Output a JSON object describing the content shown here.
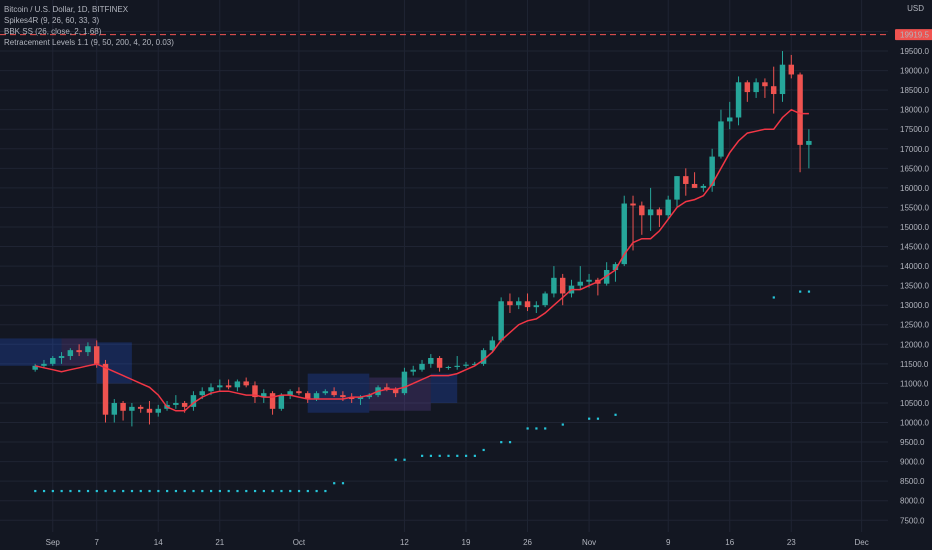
{
  "header": {
    "title": "Bitcoin / U.S. Dollar, 1D, BITFINEX",
    "indicators": [
      "Spikes4R (9, 26, 60, 33, 3)",
      "BBK SS (26, close, 2, 1.68)",
      "Retracement Levels 1.1 (9, 50, 200, 4, 20, 0.03)"
    ],
    "currency": "USD"
  },
  "colors": {
    "background": "#131722",
    "grid": "#1f2433",
    "up": "#26a69a",
    "down": "#ef5350",
    "line": "#f23645",
    "dots": "#26c6da",
    "resistance": "#ef5350",
    "price_tag_bg": "#ef5350",
    "axis_text": "#b2b5be"
  },
  "chart_data": {
    "type": "candlestick",
    "price_tag": "19919.5",
    "resistance_level": 19919.5,
    "x_labels": [
      "Sep",
      "7",
      "14",
      "21",
      "Oct",
      "12",
      "19",
      "26",
      "Nov",
      "9",
      "16",
      "23",
      "Dec"
    ],
    "x_label_positions": [
      2,
      7,
      14,
      21,
      30,
      42,
      49,
      56,
      63,
      72,
      79,
      86,
      94
    ],
    "y_ticks": [
      7500,
      8000,
      8500,
      9000,
      9500,
      10000,
      10500,
      11000,
      11500,
      12000,
      12500,
      13000,
      13500,
      14000,
      14500,
      15000,
      15500,
      16000,
      16500,
      17000,
      17500,
      18000,
      18500,
      19000,
      19500,
      20000
    ],
    "y_tick_labels": [
      "7500.0",
      "8000.0",
      "8500.0",
      "9000.0",
      "9500.0",
      "10000.0",
      "10500.0",
      "11000.0",
      "11500.0",
      "12000.0",
      "12500.0",
      "13000.0",
      "13500.0",
      "14000.0",
      "14500.0",
      "15000.0",
      "15500.0",
      "16000.0",
      "16500.0",
      "17000.0",
      "17500.0",
      "18000.0",
      "18500.0",
      "19000.0",
      "19500.0",
      "20000.0"
    ],
    "ylim": [
      7200,
      20600
    ],
    "x_range": [
      -4,
      97
    ],
    "candles": [
      [
        11350,
        11500,
        11300,
        11450
      ],
      [
        11450,
        11600,
        11400,
        11500
      ],
      [
        11500,
        11700,
        11450,
        11650
      ],
      [
        11650,
        11800,
        11500,
        11700
      ],
      [
        11700,
        11900,
        11600,
        11850
      ],
      [
        11850,
        12000,
        11700,
        11800
      ],
      [
        11800,
        12050,
        11700,
        11950
      ],
      [
        11950,
        12100,
        11400,
        11500
      ],
      [
        11500,
        11600,
        10000,
        10200
      ],
      [
        10200,
        10600,
        10000,
        10500
      ],
      [
        10500,
        10550,
        10050,
        10300
      ],
      [
        10300,
        10500,
        9900,
        10400
      ],
      [
        10400,
        10450,
        10250,
        10350
      ],
      [
        10350,
        10550,
        9950,
        10250
      ],
      [
        10250,
        10450,
        10150,
        10350
      ],
      [
        10350,
        10550,
        10300,
        10450
      ],
      [
        10450,
        10700,
        10350,
        10500
      ],
      [
        10500,
        10550,
        10250,
        10400
      ],
      [
        10400,
        10800,
        10300,
        10700
      ],
      [
        10700,
        10900,
        10600,
        10800
      ],
      [
        10800,
        11000,
        10700,
        10900
      ],
      [
        10900,
        11100,
        10800,
        10950
      ],
      [
        10950,
        11100,
        10850,
        10900
      ],
      [
        10900,
        11100,
        10800,
        11050
      ],
      [
        11050,
        11150,
        10900,
        10950
      ],
      [
        10950,
        11050,
        10500,
        10650
      ],
      [
        10650,
        10850,
        10500,
        10750
      ],
      [
        10750,
        10800,
        10200,
        10350
      ],
      [
        10350,
        10750,
        10300,
        10700
      ],
      [
        10700,
        10850,
        10600,
        10800
      ],
      [
        10800,
        10900,
        10700,
        10750
      ],
      [
        10750,
        10800,
        10500,
        10600
      ],
      [
        10600,
        10800,
        10550,
        10750
      ],
      [
        10750,
        10850,
        10700,
        10800
      ],
      [
        10800,
        10900,
        10650,
        10700
      ],
      [
        10700,
        10800,
        10550,
        10650
      ],
      [
        10650,
        10750,
        10500,
        10600
      ],
      [
        10600,
        10700,
        10450,
        10650
      ],
      [
        10650,
        10750,
        10600,
        10700
      ],
      [
        10700,
        10950,
        10650,
        10900
      ],
      [
        10900,
        11000,
        10800,
        10850
      ],
      [
        10850,
        10900,
        10650,
        10750
      ],
      [
        10750,
        11400,
        10700,
        11300
      ],
      [
        11300,
        11450,
        11200,
        11350
      ],
      [
        11350,
        11600,
        11300,
        11500
      ],
      [
        11500,
        11750,
        11400,
        11650
      ],
      [
        11650,
        11700,
        11300,
        11400
      ],
      [
        11400,
        11450,
        11350,
        11420
      ],
      [
        11420,
        11700,
        11350,
        11450
      ],
      [
        11450,
        11550,
        11400,
        11480
      ],
      [
        11480,
        11550,
        11450,
        11500
      ],
      [
        11500,
        11900,
        11450,
        11850
      ],
      [
        11850,
        12200,
        11800,
        12100
      ],
      [
        12100,
        13200,
        12050,
        13100
      ],
      [
        13100,
        13300,
        12800,
        13000
      ],
      [
        13000,
        13200,
        12900,
        13100
      ],
      [
        13100,
        13300,
        12850,
        12950
      ],
      [
        12950,
        13100,
        12800,
        13000
      ],
      [
        13000,
        13350,
        12950,
        13300
      ],
      [
        13300,
        14000,
        13200,
        13700
      ],
      [
        13700,
        13800,
        13000,
        13300
      ],
      [
        13300,
        13650,
        13200,
        13500
      ],
      [
        13500,
        14000,
        13400,
        13600
      ],
      [
        13600,
        13800,
        13450,
        13650
      ],
      [
        13650,
        13700,
        13250,
        13550
      ],
      [
        13550,
        14100,
        13500,
        13900
      ],
      [
        13900,
        14100,
        13600,
        14050
      ],
      [
        14050,
        15800,
        14000,
        15600
      ],
      [
        15600,
        15800,
        14400,
        15550
      ],
      [
        15550,
        15650,
        14800,
        15300
      ],
      [
        15300,
        16000,
        14900,
        15450
      ],
      [
        15450,
        15500,
        15000,
        15300
      ],
      [
        15300,
        15800,
        15200,
        15700
      ],
      [
        15700,
        16300,
        15500,
        16300
      ],
      [
        16300,
        16500,
        15800,
        16100
      ],
      [
        16100,
        16400,
        16000,
        16000
      ],
      [
        16000,
        16100,
        15900,
        16050
      ],
      [
        16050,
        17000,
        15900,
        16800
      ],
      [
        16800,
        18000,
        16750,
        17700
      ],
      [
        17700,
        18200,
        17500,
        17800
      ],
      [
        17800,
        18850,
        17600,
        18700
      ],
      [
        18700,
        18750,
        18200,
        18450
      ],
      [
        18450,
        18800,
        18300,
        18700
      ],
      [
        18700,
        18800,
        18300,
        18600
      ],
      [
        18600,
        19100,
        17900,
        18400
      ],
      [
        18400,
        19500,
        18200,
        19150
      ],
      [
        19150,
        19400,
        18800,
        18900
      ],
      [
        18900,
        18950,
        16400,
        17100
      ],
      [
        17100,
        17500,
        16500,
        17200
      ]
    ],
    "line_values": [
      11450,
      11400,
      11350,
      11300,
      11350,
      11400,
      11450,
      11500,
      11400,
      11300,
      11200,
      11100,
      11000,
      10900,
      10700,
      10400,
      10300,
      10300,
      10500,
      10650,
      10750,
      10800,
      10800,
      10750,
      10700,
      10700,
      10650,
      10650,
      10700,
      10700,
      10650,
      10600,
      10600,
      10600,
      10600,
      10600,
      10650,
      10650,
      10700,
      10800,
      10850,
      10850,
      10900,
      11000,
      11100,
      11200,
      11200,
      11200,
      11250,
      11350,
      11450,
      11600,
      11800,
      12100,
      12300,
      12500,
      12600,
      12650,
      12800,
      13000,
      13200,
      13400,
      13400,
      13500,
      13600,
      13750,
      13900,
      14300,
      14600,
      14700,
      14700,
      14900,
      15200,
      15500,
      15650,
      15700,
      15800,
      16100,
      16500,
      16900,
      17200,
      17400,
      17450,
      17500,
      17500,
      17800,
      18000,
      17900,
      17900
    ],
    "dot_levels": [
      {
        "x0": 0,
        "x1": 33,
        "y": 8250
      },
      {
        "x0": 34,
        "x1": 35,
        "y": 8450
      },
      {
        "x0": 41,
        "x1": 42,
        "y": 9050
      },
      {
        "x0": 44,
        "x1": 50,
        "y": 9150
      },
      {
        "x0": 51,
        "x1": 51,
        "y": 9300
      },
      {
        "x0": 53,
        "x1": 54,
        "y": 9500
      },
      {
        "x0": 56,
        "x1": 58,
        "y": 9850
      },
      {
        "x0": 60,
        "x1": 60,
        "y": 9950
      },
      {
        "x0": 63,
        "x1": 64,
        "y": 10100
      },
      {
        "x0": 66,
        "x1": 66,
        "y": 10200
      },
      {
        "x0": 84,
        "x1": 84,
        "y": 13200
      },
      {
        "x0": 87,
        "x1": 88,
        "y": 13350
      }
    ],
    "bands": [
      {
        "x0": -4,
        "x1": 3,
        "y_top": 12150,
        "y_bot": 11450,
        "color": "#2962ff"
      },
      {
        "x0": 3,
        "x1": 7,
        "y_top": 12150,
        "y_bot": 11450,
        "color": "#7e57c2"
      },
      {
        "x0": 7,
        "x1": 11,
        "y_top": 12050,
        "y_bot": 11000,
        "color": "#2962ff"
      },
      {
        "x0": 31,
        "x1": 38,
        "y_top": 11250,
        "y_bot": 10250,
        "color": "#2962ff"
      },
      {
        "x0": 38,
        "x1": 45,
        "y_top": 11150,
        "y_bot": 10300,
        "color": "#7e57c2"
      },
      {
        "x0": 45,
        "x1": 48,
        "y_top": 11250,
        "y_bot": 10500,
        "color": "#2962ff"
      }
    ]
  }
}
